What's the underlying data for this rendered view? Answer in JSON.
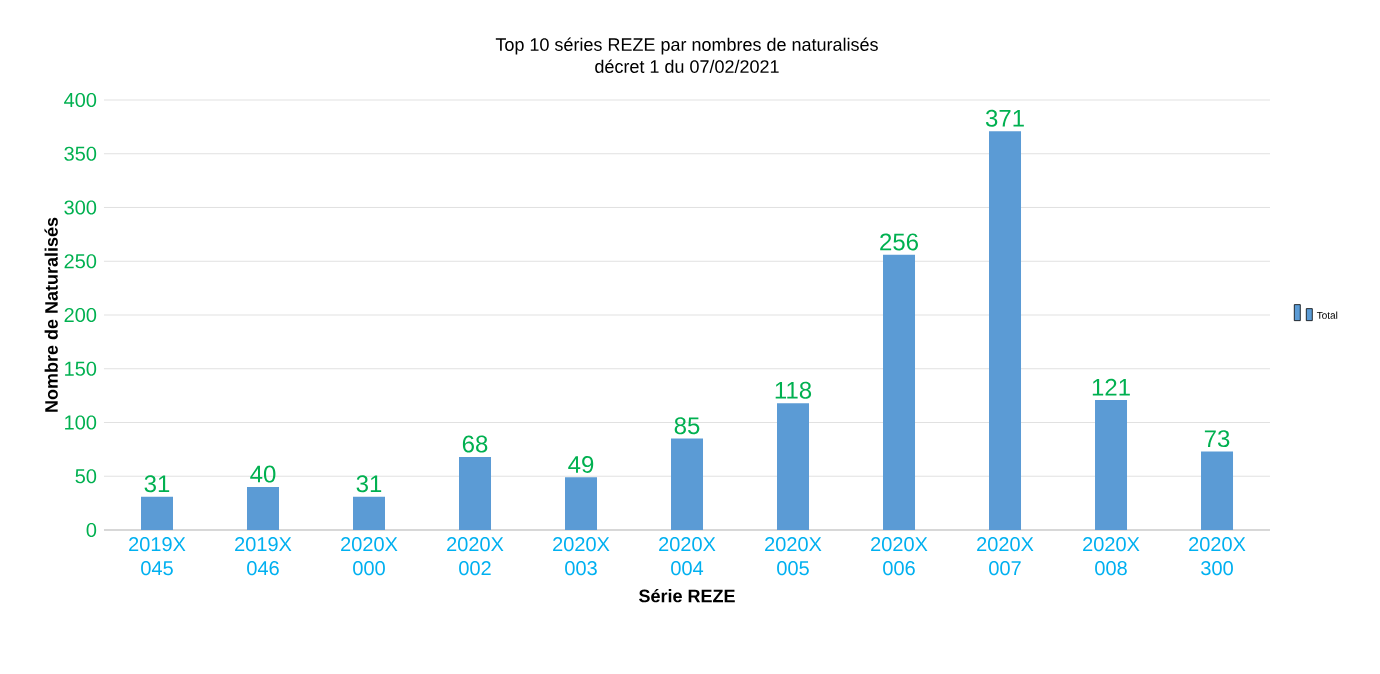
{
  "chart_data": {
    "type": "bar",
    "title": "Top 10 séries REZE par nombres de naturalisés",
    "subtitle": "décret 1 du 07/02/2021",
    "xlabel": "Série REZE",
    "ylabel": "Nombre de Naturalisés",
    "categories": [
      "2019X 045",
      "2019X 046",
      "2020X 000",
      "2020X 002",
      "2020X 003",
      "2020X 004",
      "2020X 005",
      "2020X 006",
      "2020X 007",
      "2020X 008",
      "2020X 300"
    ],
    "series": [
      {
        "name": "Total",
        "color": "#5b9bd5",
        "values": [
          31,
          40,
          31,
          68,
          49,
          85,
          118,
          256,
          371,
          121,
          73
        ]
      }
    ],
    "ylim": [
      0,
      400
    ],
    "yticks": [
      0,
      50,
      100,
      150,
      200,
      250,
      300,
      350,
      400
    ],
    "grid": "y",
    "legend": "right",
    "data_labels": true
  }
}
